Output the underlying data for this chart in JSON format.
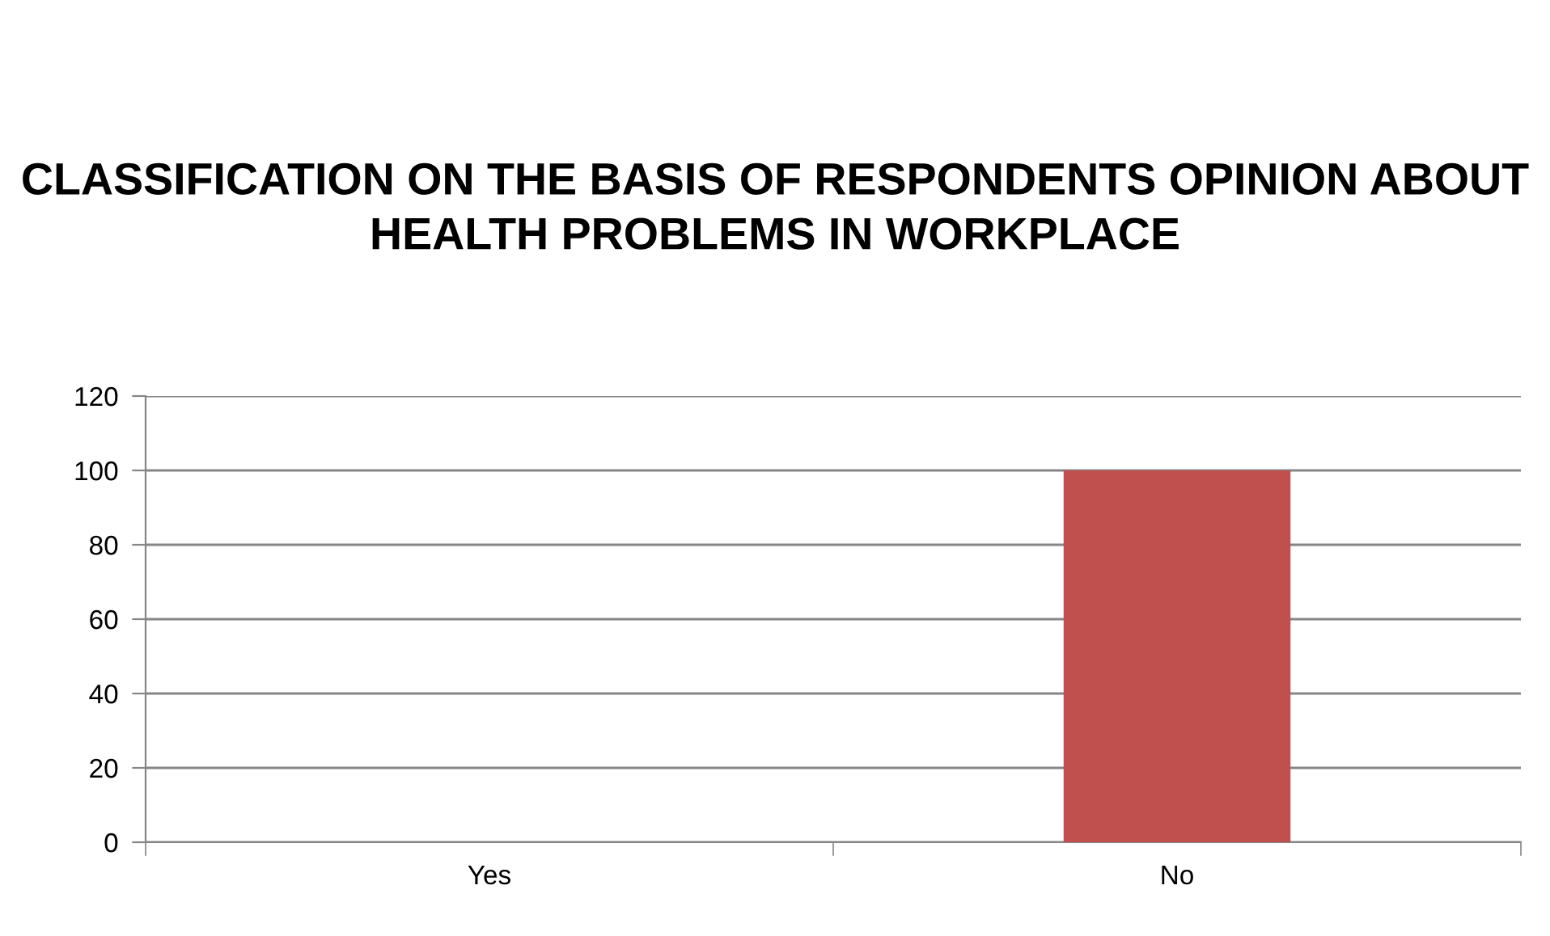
{
  "chart_data": {
    "type": "bar",
    "title": "CLASSIFICATION ON THE BASIS OF RESPONDENTS OPINION ABOUT HEALTH PROBLEMS IN WORKPLACE",
    "categories": [
      "Yes",
      "No"
    ],
    "values": [
      0,
      100
    ],
    "color": "#c0504d",
    "ylim": [
      0,
      120
    ],
    "yticks": [
      0,
      20,
      40,
      60,
      80,
      100,
      120
    ],
    "grid": "y"
  }
}
